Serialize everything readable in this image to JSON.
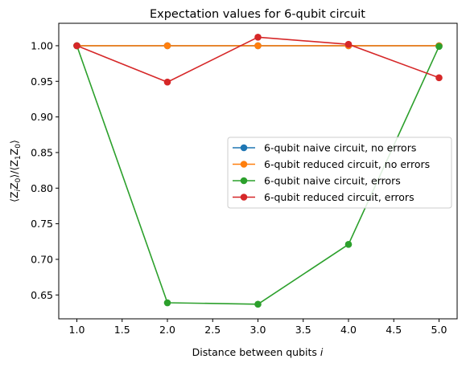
{
  "chart_data": {
    "type": "line",
    "title": "Expectation values for 6-qubit circuit",
    "xlabel_text": "Distance between qubits",
    "xlabel_var": "i",
    "ylabel_parts": [
      "⟨Z",
      "i",
      "Z",
      "0",
      "⟩/⟨Z",
      "1",
      "Z",
      "0",
      "⟩"
    ],
    "xlim": [
      0.8,
      5.2
    ],
    "ylim": [
      0.6165,
      1.0315
    ],
    "x_ticks": [
      1.0,
      1.5,
      2.0,
      2.5,
      3.0,
      3.5,
      4.0,
      4.5,
      5.0
    ],
    "x_tick_labels": [
      "1.0",
      "1.5",
      "2.0",
      "2.5",
      "3.0",
      "3.5",
      "4.0",
      "4.5",
      "5.0"
    ],
    "y_ticks": [
      0.65,
      0.7,
      0.75,
      0.8,
      0.85,
      0.9,
      0.95,
      1.0
    ],
    "y_tick_labels": [
      "0.65",
      "0.70",
      "0.75",
      "0.80",
      "0.85",
      "0.90",
      "0.95",
      "1.00"
    ],
    "grid": false,
    "legend_position": "center-right",
    "x": [
      1,
      2,
      3,
      4,
      5
    ],
    "series": [
      {
        "name": "6-qubit naive circuit, no errors",
        "color": "#1f77b4",
        "values": [
          1.0,
          1.0,
          1.0,
          1.0,
          1.0
        ]
      },
      {
        "name": "6-qubit reduced circuit, no errors",
        "color": "#ff7f0e",
        "values": [
          1.0,
          1.0,
          1.0,
          1.0,
          1.0
        ]
      },
      {
        "name": "6-qubit naive circuit, errors",
        "color": "#2ca02c",
        "values": [
          1.0,
          0.639,
          0.637,
          0.721,
          0.999
        ]
      },
      {
        "name": "6-qubit reduced circuit, errors",
        "color": "#d62728",
        "values": [
          1.0,
          0.949,
          1.012,
          1.002,
          0.955
        ]
      }
    ]
  }
}
